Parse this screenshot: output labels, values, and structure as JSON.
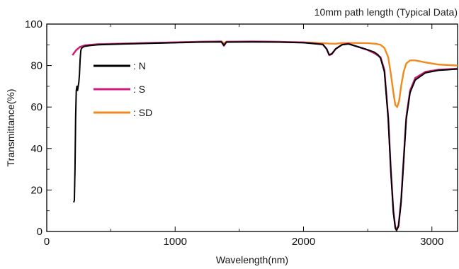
{
  "chart_data": {
    "type": "line",
    "title": "",
    "annotation": "10mm path length  (Typical Data)",
    "xlabel": "Wavelength(nm)",
    "ylabel": "Transmittance(%)",
    "xlim": [
      0,
      3200
    ],
    "ylim": [
      0,
      100
    ],
    "xticks": [
      0,
      1000,
      2000,
      3000
    ],
    "yticks": [
      0,
      20,
      40,
      60,
      80,
      100
    ],
    "grid": false,
    "legend_position": "upper-left",
    "series": [
      {
        "name": "SD",
        "legend_label": ": SD",
        "color": "#f08a1c",
        "points": [
          [
            200,
            85
          ],
          [
            230,
            87.5
          ],
          [
            260,
            89
          ],
          [
            300,
            89.8
          ],
          [
            400,
            90.3
          ],
          [
            600,
            90.6
          ],
          [
            800,
            90.9
          ],
          [
            1000,
            91.2
          ],
          [
            1200,
            91.5
          ],
          [
            1360,
            91.6
          ],
          [
            1380,
            90.8
          ],
          [
            1400,
            91.5
          ],
          [
            1600,
            91.5
          ],
          [
            1800,
            91.4
          ],
          [
            2000,
            91.2
          ],
          [
            2150,
            90.8
          ],
          [
            2200,
            90.6
          ],
          [
            2250,
            90.5
          ],
          [
            2300,
            90.9
          ],
          [
            2400,
            90.9
          ],
          [
            2500,
            90.8
          ],
          [
            2560,
            90.5
          ],
          [
            2600,
            90
          ],
          [
            2630,
            88.5
          ],
          [
            2660,
            84
          ],
          [
            2680,
            76
          ],
          [
            2700,
            67
          ],
          [
            2715,
            61
          ],
          [
            2730,
            60
          ],
          [
            2745,
            63
          ],
          [
            2760,
            70
          ],
          [
            2780,
            77
          ],
          [
            2800,
            81
          ],
          [
            2830,
            82.5
          ],
          [
            2870,
            82.5
          ],
          [
            2950,
            81.5
          ],
          [
            3050,
            80.5
          ],
          [
            3200,
            80
          ]
        ]
      },
      {
        "name": "S",
        "legend_label": ": S",
        "color": "#d01a7e",
        "points": [
          [
            200,
            85
          ],
          [
            230,
            87.5
          ],
          [
            260,
            89
          ],
          [
            300,
            89.8
          ],
          [
            400,
            90.3
          ],
          [
            600,
            90.6
          ],
          [
            800,
            90.9
          ],
          [
            1000,
            91.2
          ],
          [
            1200,
            91.5
          ],
          [
            1360,
            91.6
          ],
          [
            1380,
            89.5
          ],
          [
            1400,
            91.5
          ],
          [
            1600,
            91.6
          ],
          [
            1800,
            91.5
          ],
          [
            2000,
            91.2
          ],
          [
            2150,
            90.2
          ],
          [
            2180,
            88
          ],
          [
            2200,
            85
          ],
          [
            2220,
            85.5
          ],
          [
            2250,
            88
          ],
          [
            2300,
            90.1
          ],
          [
            2350,
            90.6
          ],
          [
            2400,
            89.5
          ],
          [
            2450,
            88.5
          ],
          [
            2500,
            87.5
          ],
          [
            2550,
            86
          ],
          [
            2600,
            84
          ],
          [
            2630,
            78
          ],
          [
            2660,
            55
          ],
          [
            2680,
            30
          ],
          [
            2700,
            10
          ],
          [
            2715,
            2
          ],
          [
            2725,
            1
          ],
          [
            2740,
            3
          ],
          [
            2760,
            15
          ],
          [
            2780,
            35
          ],
          [
            2800,
            55
          ],
          [
            2830,
            68
          ],
          [
            2870,
            74
          ],
          [
            2950,
            77
          ],
          [
            3050,
            78
          ],
          [
            3200,
            78.5
          ]
        ]
      },
      {
        "name": "N",
        "legend_label": ": N",
        "color": "#000000",
        "points": [
          [
            210,
            14
          ],
          [
            215,
            15
          ],
          [
            220,
            30
          ],
          [
            225,
            55
          ],
          [
            230,
            68
          ],
          [
            235,
            70
          ],
          [
            240,
            68
          ],
          [
            245,
            70
          ],
          [
            250,
            72
          ],
          [
            255,
            76
          ],
          [
            260,
            83
          ],
          [
            265,
            87
          ],
          [
            270,
            88.3
          ],
          [
            290,
            89.2
          ],
          [
            330,
            89.6
          ],
          [
            400,
            90
          ],
          [
            600,
            90.4
          ],
          [
            800,
            90.7
          ],
          [
            1000,
            91
          ],
          [
            1200,
            91.3
          ],
          [
            1360,
            91.4
          ],
          [
            1380,
            89.8
          ],
          [
            1400,
            91.3
          ],
          [
            1600,
            91.4
          ],
          [
            1800,
            91.3
          ],
          [
            2000,
            91
          ],
          [
            2150,
            90.2
          ],
          [
            2180,
            88
          ],
          [
            2200,
            85.2
          ],
          [
            2220,
            85.7
          ],
          [
            2250,
            88
          ],
          [
            2300,
            90
          ],
          [
            2350,
            90.4
          ],
          [
            2400,
            89.5
          ],
          [
            2450,
            88.6
          ],
          [
            2500,
            87.6
          ],
          [
            2550,
            86.5
          ],
          [
            2580,
            85.2
          ],
          [
            2600,
            83.5
          ],
          [
            2630,
            77
          ],
          [
            2660,
            54
          ],
          [
            2680,
            29
          ],
          [
            2700,
            9
          ],
          [
            2715,
            1.5
          ],
          [
            2725,
            0.5
          ],
          [
            2740,
            2.5
          ],
          [
            2760,
            14
          ],
          [
            2780,
            34
          ],
          [
            2800,
            54
          ],
          [
            2830,
            67
          ],
          [
            2870,
            73
          ],
          [
            2950,
            76.5
          ],
          [
            3050,
            77.7
          ],
          [
            3200,
            78.3
          ]
        ]
      }
    ],
    "legend_order": [
      "N",
      "S",
      "SD"
    ]
  }
}
